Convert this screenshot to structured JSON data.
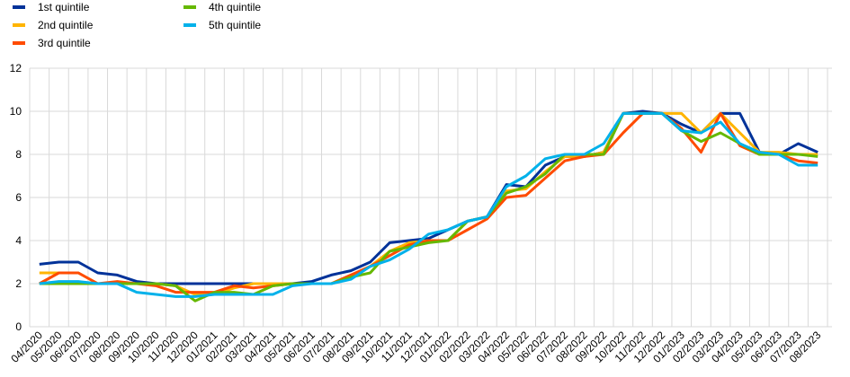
{
  "chart_data": {
    "type": "line",
    "categories": [
      "04/2020",
      "05/2020",
      "06/2020",
      "07/2020",
      "08/2020",
      "09/2020",
      "10/2020",
      "11/2020",
      "12/2020",
      "01/2021",
      "02/2021",
      "03/2021",
      "04/2021",
      "05/2021",
      "06/2021",
      "07/2021",
      "08/2021",
      "09/2021",
      "10/2021",
      "11/2021",
      "12/2021",
      "01/2022",
      "02/2022",
      "03/2022",
      "04/2022",
      "05/2022",
      "06/2022",
      "07/2022",
      "08/2022",
      "09/2022",
      "10/2022",
      "11/2022",
      "12/2022",
      "01/2023",
      "02/2023",
      "03/2023",
      "04/2023",
      "05/2023",
      "06/2023",
      "07/2023",
      "08/2023"
    ],
    "series": [
      {
        "name": "1st quintile",
        "color": "#003299",
        "values": [
          2.9,
          3.0,
          3.0,
          2.5,
          2.4,
          2.1,
          2.0,
          2.0,
          2.0,
          2.0,
          2.0,
          2.0,
          2.0,
          2.0,
          2.1,
          2.4,
          2.6,
          3.0,
          3.9,
          4.0,
          4.1,
          4.5,
          4.9,
          5.1,
          6.6,
          6.5,
          7.5,
          7.9,
          7.9,
          8.1,
          9.9,
          10.0,
          9.9,
          9.4,
          9.0,
          9.9,
          9.9,
          8.1,
          8.0,
          8.5,
          8.1
        ]
      },
      {
        "name": "2nd quintile",
        "color": "#ffb400",
        "values": [
          2.5,
          2.5,
          2.5,
          2.0,
          2.0,
          2.0,
          2.0,
          1.9,
          1.5,
          1.5,
          1.8,
          2.0,
          2.0,
          2.0,
          2.0,
          2.0,
          2.3,
          2.8,
          3.5,
          3.9,
          4.0,
          4.0,
          4.9,
          5.1,
          6.3,
          6.4,
          7.2,
          7.9,
          7.9,
          8.1,
          9.9,
          9.9,
          9.9,
          9.9,
          9.0,
          9.9,
          9.0,
          8.1,
          8.1,
          8.0,
          8.0
        ]
      },
      {
        "name": "3rd quintile",
        "color": "#ff4b00",
        "values": [
          2.0,
          2.5,
          2.5,
          2.0,
          2.1,
          2.0,
          1.9,
          1.6,
          1.6,
          1.6,
          1.9,
          1.8,
          1.9,
          2.0,
          2.0,
          2.0,
          2.4,
          2.8,
          3.3,
          3.8,
          4.0,
          4.0,
          4.5,
          5.0,
          6.0,
          6.1,
          6.9,
          7.7,
          7.9,
          8.0,
          9.0,
          9.9,
          9.9,
          9.2,
          8.1,
          9.9,
          8.4,
          8.0,
          8.0,
          7.7,
          7.6
        ]
      },
      {
        "name": "4th quintile",
        "color": "#65b800",
        "values": [
          2.0,
          2.0,
          2.0,
          2.0,
          2.0,
          2.0,
          2.0,
          1.9,
          1.2,
          1.6,
          1.6,
          1.5,
          1.9,
          2.0,
          2.0,
          2.0,
          2.3,
          2.5,
          3.5,
          3.7,
          3.9,
          4.0,
          4.9,
          5.1,
          6.2,
          6.5,
          7.1,
          8.0,
          8.0,
          8.0,
          9.9,
          9.9,
          9.9,
          9.1,
          8.6,
          9.0,
          8.5,
          8.0,
          8.0,
          8.0,
          7.9
        ]
      },
      {
        "name": "5th quintile",
        "color": "#00b1ea",
        "values": [
          2.0,
          2.1,
          2.1,
          2.0,
          2.0,
          1.6,
          1.5,
          1.4,
          1.4,
          1.5,
          1.5,
          1.5,
          1.5,
          1.9,
          2.0,
          2.0,
          2.2,
          2.8,
          3.1,
          3.6,
          4.3,
          4.5,
          4.9,
          5.1,
          6.5,
          7.0,
          7.8,
          8.0,
          8.0,
          8.5,
          9.9,
          9.9,
          9.9,
          9.1,
          9.0,
          9.5,
          8.5,
          8.1,
          8.0,
          7.5,
          7.5
        ]
      }
    ],
    "ylim": [
      0,
      12
    ],
    "yticks": [
      0,
      2,
      4,
      6,
      8,
      10,
      12
    ],
    "grid": true
  }
}
